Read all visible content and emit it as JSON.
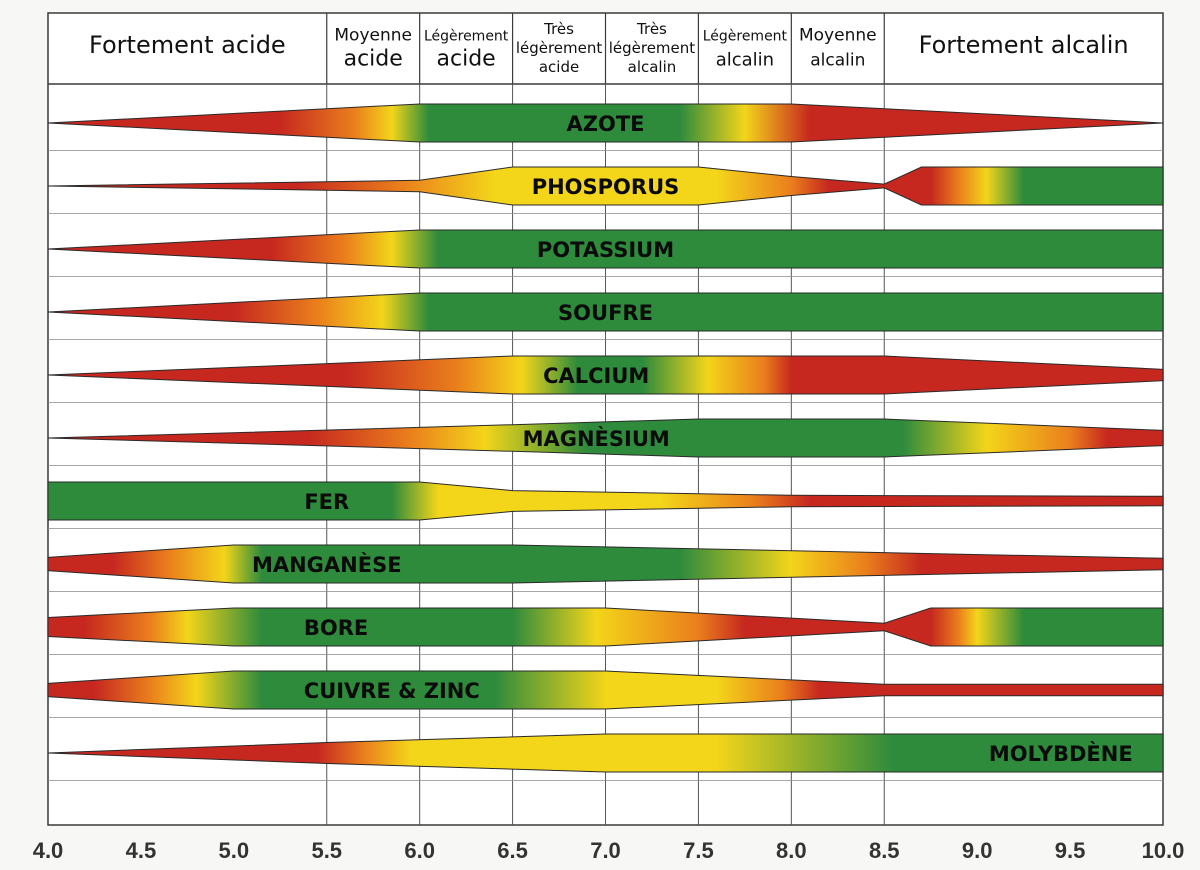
{
  "chart_data": {
    "type": "band",
    "xlim": [
      4.0,
      10.0
    ],
    "ticks": [
      "4.0",
      "4.5",
      "5.0",
      "5.5",
      "6.0",
      "6.5",
      "7.0",
      "7.5",
      "8.0",
      "8.5",
      "9.0",
      "9.5",
      "10.0"
    ],
    "zones": [
      {
        "from": 4.0,
        "to": 5.5,
        "lines": [
          "Fortement acide"
        ],
        "sizes": [
          24
        ]
      },
      {
        "from": 5.5,
        "to": 6.0,
        "lines": [
          "Moyenne",
          "acide"
        ],
        "sizes": [
          17,
          22
        ]
      },
      {
        "from": 6.0,
        "to": 6.5,
        "lines": [
          "Légèrement",
          "acide"
        ],
        "sizes": [
          14,
          22
        ]
      },
      {
        "from": 6.5,
        "to": 7.0,
        "lines": [
          "Très",
          "légèrement",
          "acide"
        ],
        "sizes": [
          15,
          15,
          15
        ]
      },
      {
        "from": 7.0,
        "to": 7.5,
        "lines": [
          "Très",
          "légèrement",
          "alcalin"
        ],
        "sizes": [
          15,
          15,
          15
        ]
      },
      {
        "from": 7.5,
        "to": 8.0,
        "lines": [
          "Légèrement",
          "alcalin"
        ],
        "sizes": [
          14,
          18
        ]
      },
      {
        "from": 8.0,
        "to": 8.5,
        "lines": [
          "Moyenne",
          "alcalin"
        ],
        "sizes": [
          17,
          17
        ]
      },
      {
        "from": 8.5,
        "to": 10.0,
        "lines": [
          "Fortement alcalin"
        ],
        "sizes": [
          24
        ]
      }
    ],
    "colors": {
      "red": "#c6281f",
      "orange": "#ea7f1c",
      "yellow": "#f3d51a",
      "green": "#2e8b3c"
    },
    "series": [
      {
        "name": "AZOTE",
        "label_x": 7.0,
        "profile": [
          [
            4.0,
            0
          ],
          [
            6.0,
            1
          ],
          [
            8.0,
            1
          ],
          [
            10.0,
            0
          ]
        ],
        "colors": [
          [
            4.0,
            "red"
          ],
          [
            5.25,
            "red"
          ],
          [
            5.65,
            "orange"
          ],
          [
            5.85,
            "yellow"
          ],
          [
            6.05,
            "green"
          ],
          [
            7.4,
            "green"
          ],
          [
            7.75,
            "yellow"
          ],
          [
            8.1,
            "red"
          ],
          [
            10.0,
            "red"
          ]
        ]
      },
      {
        "name": "PHOSPORUS",
        "label_x": 7.0,
        "profile": [
          [
            4.0,
            0
          ],
          [
            6.0,
            0.3
          ],
          [
            6.5,
            1
          ],
          [
            7.5,
            1
          ],
          [
            8.0,
            0.5
          ],
          [
            8.5,
            0.1
          ],
          [
            8.7,
            1
          ],
          [
            10.0,
            1
          ]
        ],
        "colors": [
          [
            4.0,
            "red"
          ],
          [
            5.35,
            "red"
          ],
          [
            5.9,
            "orange"
          ],
          [
            6.4,
            "yellow"
          ],
          [
            7.6,
            "yellow"
          ],
          [
            8.0,
            "orange"
          ],
          [
            8.2,
            "red"
          ],
          [
            8.75,
            "red"
          ],
          [
            8.9,
            "orange"
          ],
          [
            9.05,
            "yellow"
          ],
          [
            9.25,
            "green"
          ],
          [
            10.0,
            "green"
          ]
        ]
      },
      {
        "name": "POTASSIUM",
        "label_x": 7.0,
        "profile": [
          [
            4.0,
            0
          ],
          [
            6.0,
            1
          ],
          [
            10.0,
            1
          ]
        ],
        "colors": [
          [
            4.0,
            "red"
          ],
          [
            5.2,
            "red"
          ],
          [
            5.6,
            "orange"
          ],
          [
            5.85,
            "yellow"
          ],
          [
            6.1,
            "green"
          ],
          [
            10.0,
            "green"
          ]
        ]
      },
      {
        "name": "SOUFRE",
        "label_x": 7.0,
        "profile": [
          [
            4.0,
            0
          ],
          [
            6.0,
            1
          ],
          [
            10.0,
            1
          ]
        ],
        "colors": [
          [
            4.0,
            "red"
          ],
          [
            5.0,
            "red"
          ],
          [
            5.45,
            "orange"
          ],
          [
            5.8,
            "yellow"
          ],
          [
            6.05,
            "green"
          ],
          [
            10.0,
            "green"
          ]
        ]
      },
      {
        "name": "CALCIUM",
        "label_x": 6.95,
        "profile": [
          [
            4.0,
            0
          ],
          [
            6.5,
            1
          ],
          [
            8.5,
            1
          ],
          [
            10.0,
            0.3
          ]
        ],
        "colors": [
          [
            4.0,
            "red"
          ],
          [
            5.6,
            "red"
          ],
          [
            6.2,
            "orange"
          ],
          [
            6.55,
            "yellow"
          ],
          [
            6.85,
            "green"
          ],
          [
            7.2,
            "green"
          ],
          [
            7.55,
            "yellow"
          ],
          [
            7.85,
            "orange"
          ],
          [
            8.0,
            "red"
          ],
          [
            10.0,
            "red"
          ]
        ]
      },
      {
        "name": "MAGNÈSIUM",
        "label_x": 6.95,
        "profile": [
          [
            4.0,
            0
          ],
          [
            6.5,
            0.7
          ],
          [
            7.5,
            1
          ],
          [
            8.5,
            1
          ],
          [
            10.0,
            0.4
          ]
        ],
        "colors": [
          [
            4.0,
            "red"
          ],
          [
            5.4,
            "red"
          ],
          [
            5.95,
            "orange"
          ],
          [
            6.35,
            "yellow"
          ],
          [
            6.9,
            "green"
          ],
          [
            8.6,
            "green"
          ],
          [
            9.05,
            "yellow"
          ],
          [
            9.5,
            "orange"
          ],
          [
            9.7,
            "red"
          ],
          [
            10.0,
            "red"
          ]
        ]
      },
      {
        "name": "FER",
        "label_x": 5.5,
        "profile": [
          [
            4.0,
            1
          ],
          [
            6.0,
            1
          ],
          [
            6.5,
            0.55
          ],
          [
            8.0,
            0.3
          ],
          [
            10.0,
            0.25
          ]
        ],
        "colors": [
          [
            4.0,
            "green"
          ],
          [
            5.85,
            "green"
          ],
          [
            6.1,
            "yellow"
          ],
          [
            7.3,
            "yellow"
          ],
          [
            7.8,
            "orange"
          ],
          [
            8.1,
            "red"
          ],
          [
            10.0,
            "red"
          ]
        ]
      },
      {
        "name": "MANGANÈSE",
        "label_x": 5.5,
        "profile": [
          [
            4.0,
            0.35
          ],
          [
            5.0,
            1
          ],
          [
            6.5,
            1
          ],
          [
            8.5,
            0.6
          ],
          [
            10.0,
            0.3
          ]
        ],
        "colors": [
          [
            4.0,
            "red"
          ],
          [
            4.35,
            "red"
          ],
          [
            4.65,
            "orange"
          ],
          [
            4.95,
            "yellow"
          ],
          [
            5.15,
            "green"
          ],
          [
            7.4,
            "green"
          ],
          [
            8.0,
            "yellow"
          ],
          [
            8.4,
            "orange"
          ],
          [
            8.7,
            "red"
          ],
          [
            10.0,
            "red"
          ]
        ]
      },
      {
        "name": "BORE",
        "label_x": 5.55,
        "profile": [
          [
            4.0,
            0.5
          ],
          [
            5.0,
            1
          ],
          [
            7.0,
            1
          ],
          [
            8.5,
            0.2
          ],
          [
            8.75,
            1
          ],
          [
            10.0,
            1
          ]
        ],
        "colors": [
          [
            4.0,
            "red"
          ],
          [
            4.2,
            "red"
          ],
          [
            4.55,
            "orange"
          ],
          [
            4.75,
            "yellow"
          ],
          [
            5.15,
            "green"
          ],
          [
            6.5,
            "green"
          ],
          [
            6.95,
            "yellow"
          ],
          [
            7.5,
            "orange"
          ],
          [
            7.75,
            "red"
          ],
          [
            8.75,
            "red"
          ],
          [
            8.9,
            "orange"
          ],
          [
            9.0,
            "yellow"
          ],
          [
            9.25,
            "green"
          ],
          [
            10.0,
            "green"
          ]
        ]
      },
      {
        "name": "CUIVRE & ZINC",
        "label_x": 5.85,
        "profile": [
          [
            4.0,
            0.35
          ],
          [
            5.0,
            1
          ],
          [
            7.0,
            1
          ],
          [
            8.5,
            0.3
          ],
          [
            10.0,
            0.3
          ]
        ],
        "colors": [
          [
            4.0,
            "red"
          ],
          [
            4.25,
            "red"
          ],
          [
            4.55,
            "orange"
          ],
          [
            4.8,
            "yellow"
          ],
          [
            5.15,
            "green"
          ],
          [
            6.4,
            "green"
          ],
          [
            7.0,
            "yellow"
          ],
          [
            7.6,
            "yellow"
          ],
          [
            7.95,
            "orange"
          ],
          [
            8.15,
            "red"
          ],
          [
            10.0,
            "red"
          ]
        ]
      },
      {
        "name": "MOLYBDÈNE",
        "label_x": 9.45,
        "profile": [
          [
            4.0,
            0
          ],
          [
            5.5,
            0.55
          ],
          [
            7.0,
            1
          ],
          [
            10.0,
            1
          ]
        ],
        "colors": [
          [
            4.0,
            "red"
          ],
          [
            5.45,
            "red"
          ],
          [
            5.7,
            "orange"
          ],
          [
            5.95,
            "yellow"
          ],
          [
            7.6,
            "yellow"
          ],
          [
            8.55,
            "green"
          ],
          [
            10.0,
            "green"
          ]
        ]
      }
    ]
  }
}
